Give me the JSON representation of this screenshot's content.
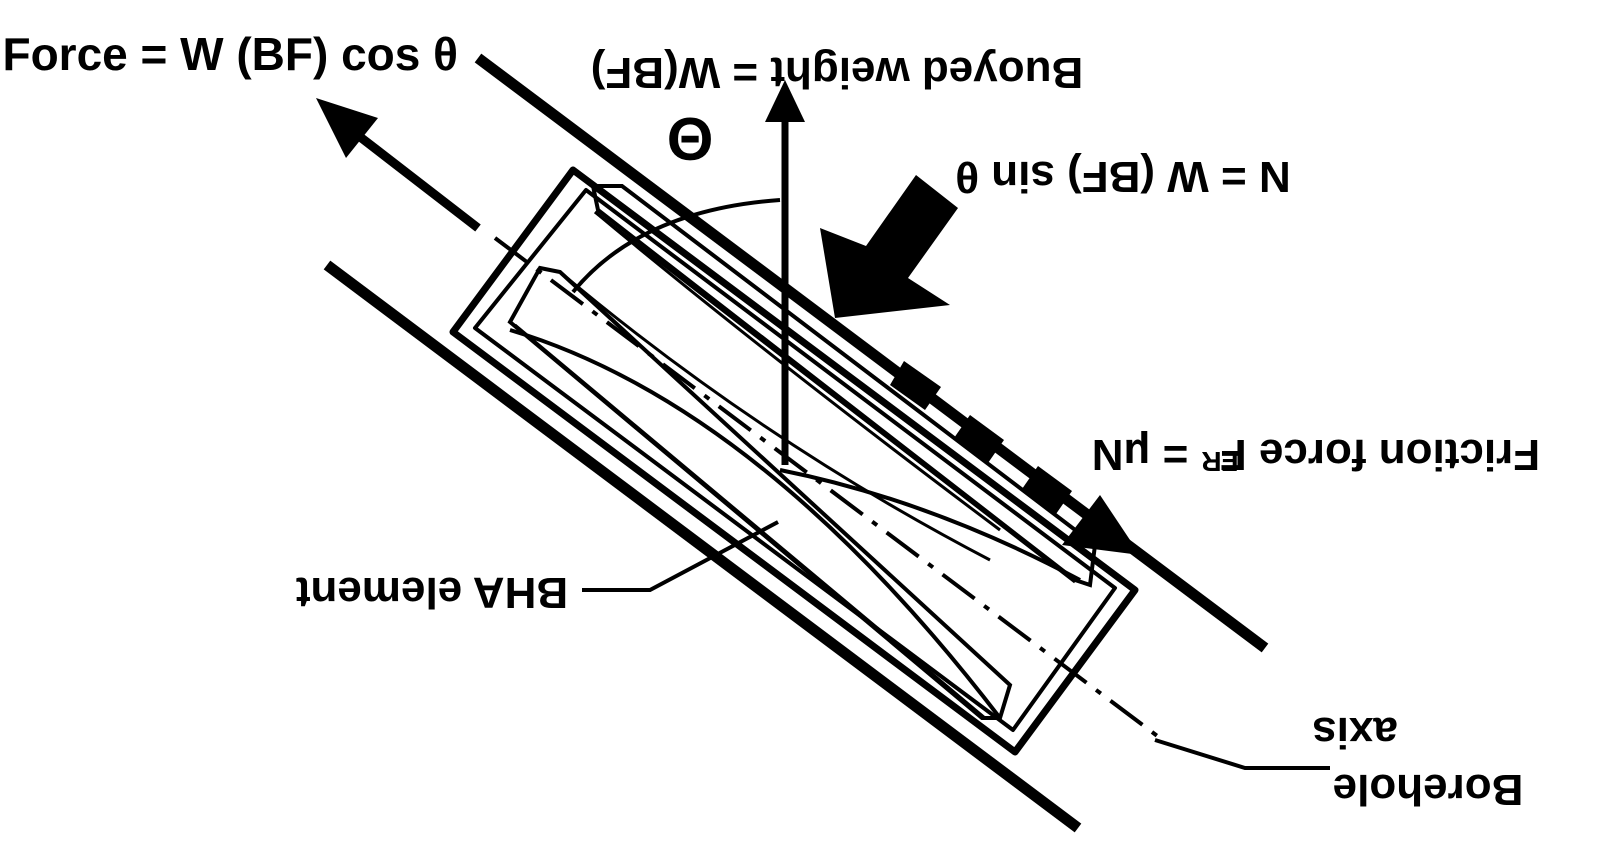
{
  "diagram": {
    "labels": {
      "force_axial": "Force = W (BF) cos θ",
      "buoyed_weight": "Buoyed weight = W(BF)",
      "theta": "Θ",
      "normal_force": "N = W (BF) sin θ",
      "friction_force": "Friction force F",
      "friction_sub": "FR",
      "friction_tail": "= μN",
      "bha_element": "BHA element",
      "borehole_axis_1": "Borehole",
      "borehole_axis_2": "axis"
    },
    "colors": {
      "ink": "#000000",
      "paper": "#ffffff"
    }
  }
}
